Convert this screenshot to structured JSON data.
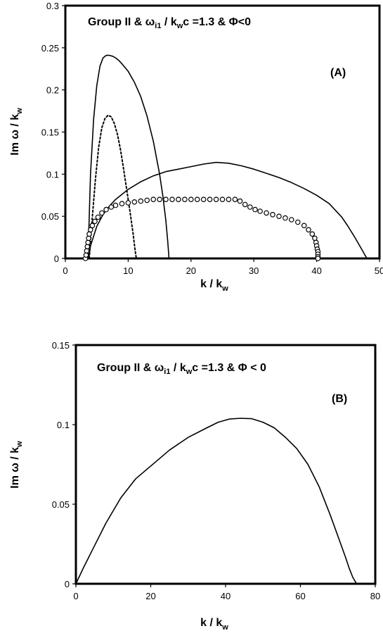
{
  "chart_data": [
    {
      "type": "line",
      "panel_label": "(A)",
      "title": {
        "pre": "Group II  &  ",
        "omega": "ω",
        "sub1": "i1",
        "mid": " / k",
        "sub2": "w",
        "post": "c =1.3 &  Φ<0"
      },
      "xlabel": {
        "main": "k / k",
        "sub": "w"
      },
      "ylabel": {
        "main": "Im ω / k",
        "sub": "w"
      },
      "xlim": [
        0,
        50
      ],
      "ylim": [
        0,
        0.3
      ],
      "x_ticks": [
        "0",
        "10",
        "20",
        "30",
        "40",
        "50"
      ],
      "y_ticks": [
        "0",
        "0.05",
        "0.1",
        "0.15",
        "0.2",
        "0.25",
        "0.3"
      ],
      "x_tick_values": [
        0,
        10,
        20,
        30,
        40,
        50
      ],
      "y_tick_values": [
        0,
        0.05,
        0.1,
        0.15,
        0.2,
        0.25,
        0.3
      ],
      "grid": false,
      "series": [
        {
          "style": "solid",
          "x": [
            3.6,
            4.0,
            4.5,
            5.0,
            5.5,
            6.0,
            6.5,
            7.0,
            7.5,
            8.0,
            8.5,
            9.0,
            10.0,
            11.0,
            12.0,
            13.0,
            14.0,
            15.0,
            15.5,
            16.0,
            16.3,
            16.5
          ],
          "y": [
            0,
            0.1,
            0.165,
            0.205,
            0.228,
            0.238,
            0.241,
            0.241,
            0.24,
            0.238,
            0.235,
            0.231,
            0.222,
            0.209,
            0.192,
            0.169,
            0.139,
            0.1,
            0.075,
            0.045,
            0.02,
            0
          ]
        },
        {
          "style": "dotted",
          "x": [
            3.8,
            4.2,
            4.8,
            5.3,
            5.8,
            6.3,
            6.8,
            7.3,
            7.8,
            8.3,
            8.8,
            9.3,
            9.8,
            10.3,
            10.8,
            11.1,
            11.3
          ],
          "y": [
            0,
            0.04,
            0.095,
            0.132,
            0.155,
            0.166,
            0.17,
            0.168,
            0.16,
            0.147,
            0.128,
            0.105,
            0.08,
            0.055,
            0.028,
            0.01,
            0
          ]
        },
        {
          "style": "solid",
          "x": [
            3.7,
            4,
            5,
            6,
            7,
            8,
            10,
            12,
            14,
            16,
            18,
            20,
            22,
            24,
            26,
            28,
            30,
            32,
            34,
            36,
            38,
            40,
            42,
            44,
            45,
            46,
            47,
            48
          ],
          "y": [
            0,
            0.015,
            0.038,
            0.052,
            0.062,
            0.07,
            0.082,
            0.091,
            0.098,
            0.103,
            0.106,
            0.109,
            0.112,
            0.114,
            0.113,
            0.11,
            0.106,
            0.101,
            0.096,
            0.09,
            0.083,
            0.075,
            0.065,
            0.049,
            0.038,
            0.026,
            0.013,
            0
          ]
        },
        {
          "style": "circles",
          "x": [
            3.2,
            3.3,
            3.4,
            3.5,
            3.6,
            3.7,
            3.8,
            4.0,
            4.3,
            4.7,
            5.2,
            5.8,
            6.5,
            7.3,
            8.0,
            9.0,
            10.0,
            11.0,
            12.0,
            13.0,
            14.0,
            15.0,
            16.0,
            17.0,
            18.0,
            19.0,
            20.0,
            21.0,
            22.0,
            23.0,
            24.0,
            25.0,
            26.0,
            27.0,
            27.8,
            28.6,
            29.4,
            30.2,
            31.0,
            32.0,
            33.0,
            34.0,
            35.0,
            36.0,
            37.0,
            38.0,
            38.7,
            39.3,
            39.7,
            39.9,
            40.0,
            40.1,
            40.2,
            40.2,
            40.2,
            40.2
          ],
          "y": [
            0,
            0.004,
            0.009,
            0.014,
            0.019,
            0.024,
            0.029,
            0.034,
            0.039,
            0.044,
            0.049,
            0.054,
            0.058,
            0.061,
            0.063,
            0.065,
            0.066,
            0.067,
            0.068,
            0.069,
            0.07,
            0.07,
            0.07,
            0.07,
            0.07,
            0.07,
            0.07,
            0.07,
            0.07,
            0.07,
            0.07,
            0.07,
            0.07,
            0.07,
            0.068,
            0.064,
            0.061,
            0.058,
            0.056,
            0.054,
            0.052,
            0.05,
            0.048,
            0.046,
            0.043,
            0.039,
            0.034,
            0.029,
            0.024,
            0.019,
            0.015,
            0.011,
            0.008,
            0.005,
            0.002,
            0
          ]
        }
      ]
    },
    {
      "type": "line",
      "panel_label": "(B)",
      "title": {
        "pre": "Group II  &  ",
        "omega": "ω",
        "sub1": "i1",
        "mid": " / k",
        "sub2": "w",
        "post": "c =1.3 &  Φ < 0"
      },
      "xlabel": {
        "main": "k / k",
        "sub": "w"
      },
      "ylabel": {
        "main": "Im ω / k",
        "sub": "w"
      },
      "xlim": [
        0,
        80
      ],
      "ylim": [
        0,
        0.15
      ],
      "x_ticks": [
        "0",
        "20",
        "40",
        "60",
        "80"
      ],
      "y_ticks": [
        "0",
        "0.05",
        "0.1",
        "0.15"
      ],
      "x_tick_values": [
        0,
        20,
        40,
        60,
        80
      ],
      "y_tick_values": [
        0,
        0.05,
        0.1,
        0.15
      ],
      "grid": false,
      "series": [
        {
          "style": "solid",
          "x": [
            0,
            2,
            5,
            8,
            12,
            16,
            20,
            25,
            30,
            35,
            38,
            41,
            44,
            47,
            50,
            53,
            56,
            59,
            62,
            65,
            68,
            70,
            72,
            73,
            74,
            75
          ],
          "y": [
            0,
            0.01,
            0.024,
            0.038,
            0.054,
            0.066,
            0.074,
            0.084,
            0.092,
            0.098,
            0.1015,
            0.1035,
            0.104,
            0.1037,
            0.1015,
            0.098,
            0.092,
            0.085,
            0.075,
            0.061,
            0.043,
            0.03,
            0.017,
            0.01,
            0.004,
            0
          ]
        }
      ]
    }
  ]
}
